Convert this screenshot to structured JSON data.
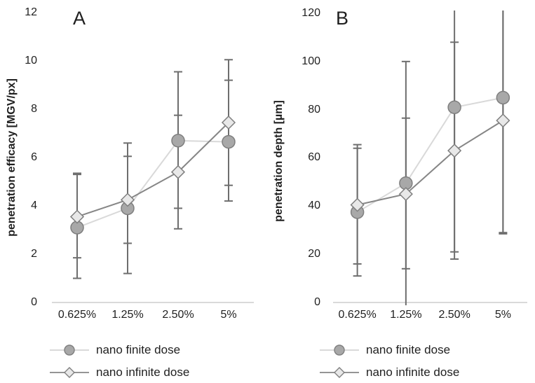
{
  "colors": {
    "background": "#ffffff",
    "text": "#1f1f1f",
    "axis_line": "#d9d9d9",
    "error_bar": "#6e6e6e"
  },
  "chart_data": [
    {
      "type": "line",
      "panel_label": "A",
      "ylabel": "penetration efficacy [MGV/px]",
      "xlabel": "",
      "categories": [
        "0.625%",
        "1.25%",
        "2.50%",
        "5%"
      ],
      "ylim": [
        0,
        12
      ],
      "yticks": [
        0,
        2,
        4,
        6,
        8,
        10,
        12
      ],
      "grid": false,
      "legend_position": "bottom-left",
      "series": [
        {
          "name": "nano finite dose",
          "marker": "circle",
          "values": [
            3.1,
            3.9,
            6.7,
            6.65
          ],
          "err_low": [
            1.0,
            1.2,
            3.9,
            4.2
          ],
          "err_high": [
            5.35,
            6.6,
            9.55,
            9.2
          ],
          "line_color": "#d9d9d9",
          "marker_fill": "#a8a8a8",
          "marker_stroke": "#7f7f7f"
        },
        {
          "name": "nano infinite dose",
          "marker": "diamond",
          "values": [
            3.55,
            4.25,
            5.4,
            7.45
          ],
          "err_low": [
            1.85,
            2.45,
            3.05,
            4.85
          ],
          "err_high": [
            5.3,
            6.05,
            7.75,
            10.05
          ],
          "line_color": "#868686",
          "marker_fill": "#e8e8e8",
          "marker_stroke": "#7f7f7f"
        }
      ]
    },
    {
      "type": "line",
      "panel_label": "B",
      "ylabel": "penetration depth [µm]",
      "xlabel": "",
      "categories": [
        "0.625%",
        "1.25%",
        "2.50%",
        "5%"
      ],
      "ylim": [
        0,
        120
      ],
      "yticks": [
        0,
        20,
        40,
        60,
        80,
        100,
        120
      ],
      "grid": false,
      "legend_position": "bottom-left",
      "series": [
        {
          "name": "nano finite dose",
          "marker": "circle",
          "values": [
            37.5,
            49.5,
            81,
            85
          ],
          "err_low": [
            11,
            -1.5,
            21,
            29
          ],
          "err_high": [
            64,
            100,
            141,
            141
          ],
          "line_color": "#d9d9d9",
          "marker_fill": "#a8a8a8",
          "marker_stroke": "#7f7f7f"
        },
        {
          "name": "nano infinite dose",
          "marker": "diamond",
          "values": [
            40.5,
            45,
            63,
            75.5
          ],
          "err_low": [
            16,
            14,
            18,
            28.5
          ],
          "err_high": [
            65.5,
            76.5,
            108,
            122.5
          ],
          "line_color": "#868686",
          "marker_fill": "#e8e8e8",
          "marker_stroke": "#7f7f7f"
        }
      ]
    }
  ]
}
